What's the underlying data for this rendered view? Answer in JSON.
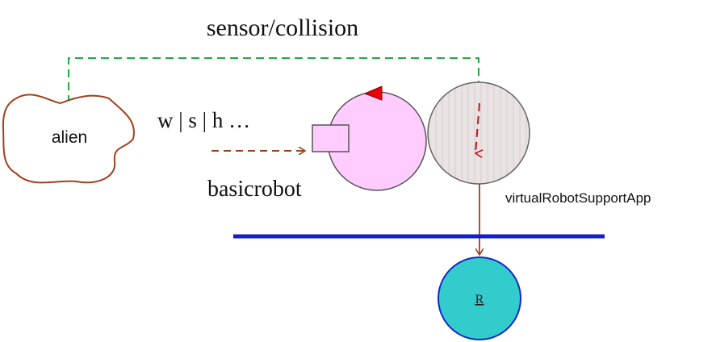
{
  "labels": {
    "sensor_collision": "sensor/collision",
    "alien": "alien",
    "commands": "w | s | h …",
    "basicrobot": "basicrobot",
    "support_app": "virtualRobotSupportApp",
    "robot": "R"
  },
  "colors": {
    "green_dashed": "#22aa44",
    "brown": "#a0401c",
    "blue_line": "#1020cc",
    "pink": "#ffccff",
    "gray_circle": "#e8e0e0",
    "teal": "#33cccc",
    "red_marker": "#ee0000"
  }
}
